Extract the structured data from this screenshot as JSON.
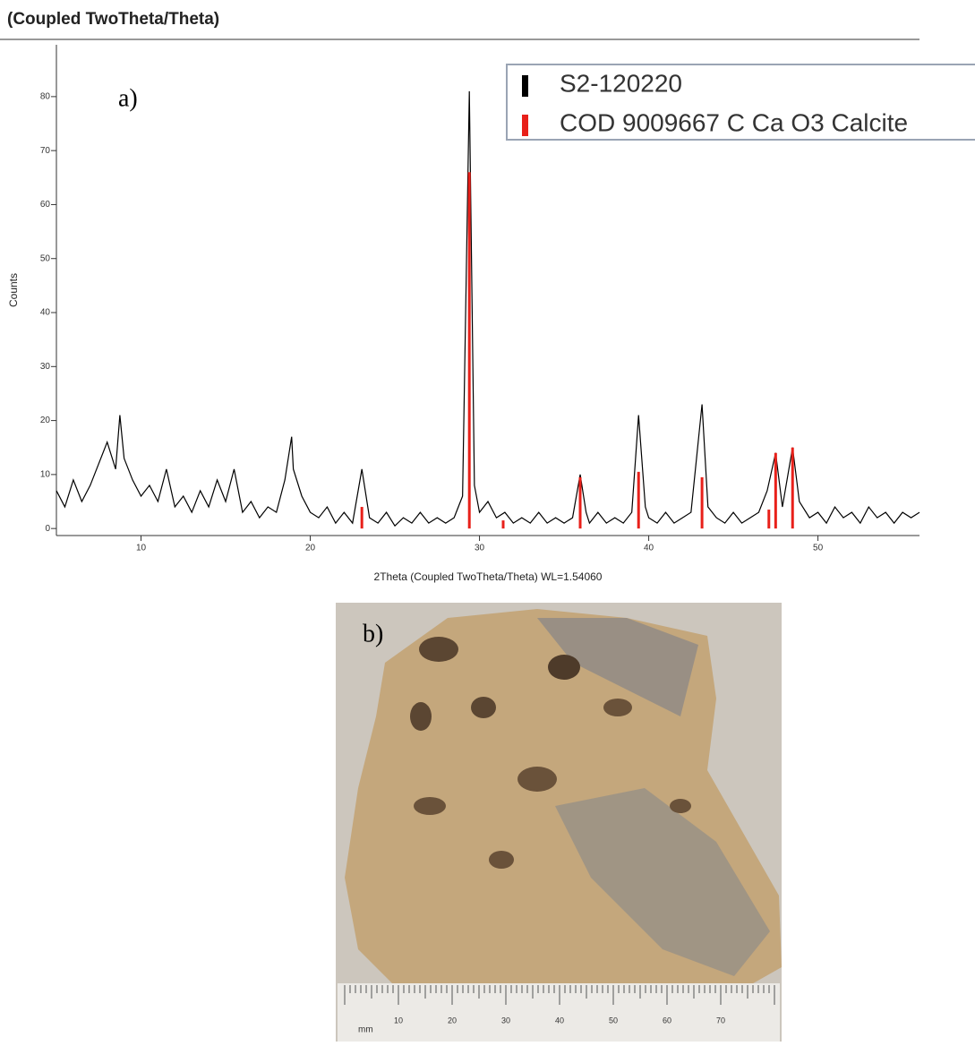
{
  "chart_data": {
    "type": "line",
    "title": "(Coupled TwoTheta/Theta)",
    "annotation": "a)",
    "xlabel": "2Theta (Coupled TwoTheta/Theta) WL=1.54060",
    "ylabel": "Counts",
    "xlim": [
      5,
      56
    ],
    "ylim": [
      -1.3,
      89.6
    ],
    "xticks": [
      10,
      20,
      30,
      40,
      50
    ],
    "yticks": [
      0,
      10,
      20,
      30,
      40,
      50,
      60,
      70,
      80
    ],
    "legend": "top-right",
    "series": [
      {
        "name": "S2-120220",
        "color": "#000000",
        "style": "line",
        "x": [
          5,
          5.5,
          6,
          6.5,
          7,
          7.5,
          8,
          8.5,
          8.75,
          9,
          9.5,
          10,
          10.5,
          11,
          11.5,
          12,
          12.5,
          13,
          13.5,
          14,
          14.5,
          15,
          15.5,
          16,
          16.5,
          17,
          17.5,
          18,
          18.5,
          18.9,
          19,
          19.5,
          20,
          20.5,
          21,
          21.5,
          22,
          22.5,
          23.05,
          23.5,
          24,
          24.5,
          25,
          25.5,
          26,
          26.5,
          27,
          27.5,
          28,
          28.5,
          29,
          29.4,
          29.7,
          30,
          30.5,
          31,
          31.5,
          32,
          32.5,
          33,
          33.5,
          34,
          34.5,
          35,
          35.5,
          35.95,
          36.3,
          36.5,
          37,
          37.5,
          38,
          38.5,
          39,
          39.4,
          39.8,
          40,
          40.5,
          41,
          41.5,
          42,
          42.5,
          43.15,
          43.5,
          44,
          44.5,
          45,
          45.5,
          46,
          46.5,
          47,
          47.5,
          47.9,
          48.5,
          48.9,
          49.5,
          50,
          50.5,
          51,
          51.5,
          52,
          52.5,
          53,
          53.5,
          54,
          54.5,
          55,
          55.5,
          56
        ],
        "values": [
          7,
          4,
          9,
          5,
          8,
          12,
          16,
          11,
          21,
          13,
          9,
          6,
          8,
          5,
          11,
          4,
          6,
          3,
          7,
          4,
          9,
          5,
          11,
          3,
          5,
          2,
          4,
          3,
          9,
          17,
          11,
          6,
          3,
          2,
          4,
          1,
          3,
          1,
          11,
          2,
          1,
          3,
          0.5,
          2,
          1,
          3,
          1,
          2,
          1,
          2,
          6,
          81,
          8,
          3,
          5,
          2,
          3,
          1,
          2,
          1,
          3,
          1,
          2,
          1,
          2,
          10,
          3,
          1,
          3,
          1,
          2,
          1,
          3,
          21,
          4,
          2,
          1,
          3,
          1,
          2,
          3,
          23,
          4,
          2,
          1,
          3,
          1,
          2,
          3,
          7,
          14,
          4,
          15,
          5,
          2,
          3,
          1,
          4,
          2,
          3,
          1,
          4,
          2,
          3,
          1,
          3,
          2,
          3
        ]
      },
      {
        "name": "COD 9009667 C Ca O3 Calcite",
        "color": "#e8201a",
        "style": "stick",
        "x": [
          23.05,
          29.4,
          31.4,
          35.95,
          39.4,
          43.15,
          47.1,
          47.5,
          48.5
        ],
        "values": [
          4,
          66,
          1.5,
          9.5,
          10.5,
          9.5,
          3.5,
          14,
          15
        ]
      }
    ]
  },
  "photo": {
    "label": "b)",
    "ruler": {
      "unit": "mm",
      "labels": [
        "10",
        "20",
        "30",
        "40",
        "50",
        "60",
        "70"
      ]
    }
  }
}
